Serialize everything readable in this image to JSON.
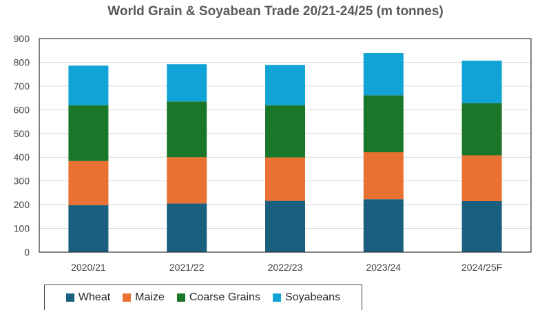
{
  "chart_data": {
    "type": "bar",
    "stacked": true,
    "title": "World Grain & Soyabean Trade 20/21-24/25 (m tonnes)",
    "xlabel": "",
    "ylabel": "",
    "categories": [
      "2020/21",
      "2021/22",
      "2022/23",
      "2023/24",
      "2024/25F"
    ],
    "ylim": [
      0,
      900
    ],
    "yticks": [
      0,
      100,
      200,
      300,
      400,
      500,
      600,
      700,
      800,
      900
    ],
    "grid": true,
    "legend": "bottom",
    "series": [
      {
        "name": "Wheat",
        "color": "#1b5f7f",
        "values": [
          198,
          205,
          216,
          223,
          215
        ]
      },
      {
        "name": "Maize",
        "color": "#e97132",
        "values": [
          186,
          195,
          183,
          198,
          193
        ]
      },
      {
        "name": "Coarse Grains",
        "color": "#1a7628",
        "values": [
          235,
          235,
          220,
          240,
          220
        ]
      },
      {
        "name": "Soyabeans",
        "color": "#12a3d6",
        "values": [
          167,
          157,
          170,
          178,
          179
        ]
      }
    ]
  }
}
